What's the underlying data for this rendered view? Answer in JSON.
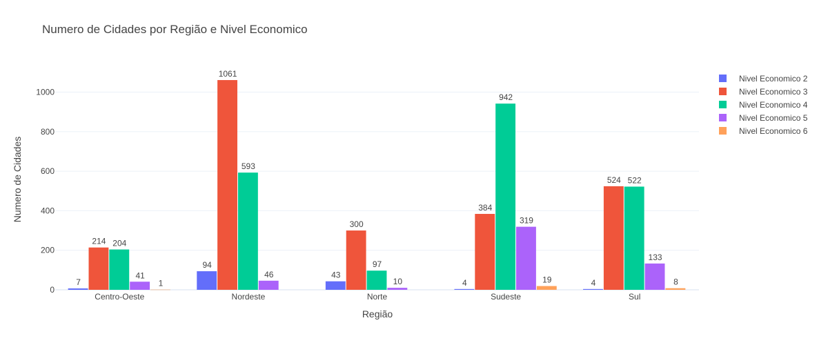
{
  "chart_data": {
    "type": "bar",
    "title": "Numero de Cidades por Região e Nivel Economico",
    "xlabel": "Região",
    "ylabel": "Numero de Cidades",
    "categories": [
      "Centro-Oeste",
      "Nordeste",
      "Norte",
      "Sudeste",
      "Sul"
    ],
    "ylim": [
      0,
      1117
    ],
    "yticks": [
      0,
      200,
      400,
      600,
      800,
      1000
    ],
    "grid": true,
    "legend_position": "top-right",
    "series": [
      {
        "name": "Nivel Economico 2",
        "color": "#636efa",
        "values": [
          7,
          94,
          43,
          4,
          4
        ]
      },
      {
        "name": "Nivel Economico 3",
        "color": "#ef553b",
        "values": [
          214,
          1061,
          300,
          384,
          524
        ]
      },
      {
        "name": "Nivel Economico 4",
        "color": "#00cc96",
        "values": [
          204,
          593,
          97,
          942,
          522
        ]
      },
      {
        "name": "Nivel Economico 5",
        "color": "#ab63fa",
        "values": [
          41,
          46,
          10,
          319,
          133
        ]
      },
      {
        "name": "Nivel Economico 6",
        "color": "#ffa15a",
        "values": [
          1,
          null,
          null,
          19,
          8
        ]
      }
    ]
  }
}
